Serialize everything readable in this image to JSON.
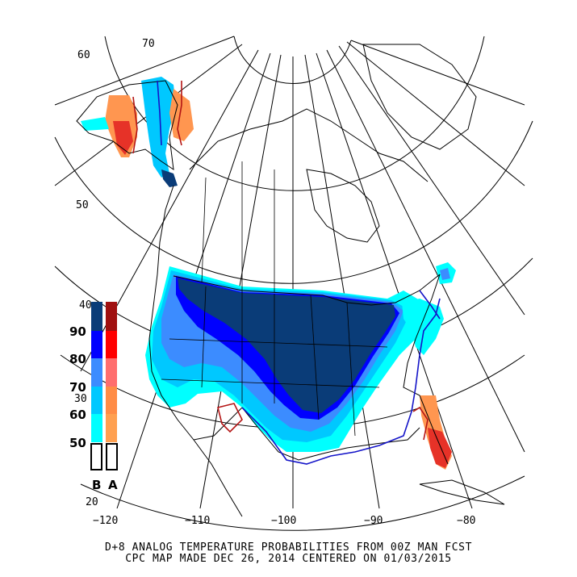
{
  "lat_labels": [
    "70",
    "60",
    "50",
    "40",
    "30",
    "20"
  ],
  "lon_labels": [
    "−120",
    "−110",
    "−100",
    "−90",
    "−80"
  ],
  "legend": {
    "levels": [
      "90",
      "80",
      "70",
      "60",
      "50"
    ],
    "below_letter": "B",
    "above_letter": "A",
    "below_colors": [
      "#0a3c78",
      "#0000ff",
      "#3c8cff",
      "#00c8ff",
      "#00ffff"
    ],
    "above_colors": [
      "#a01010",
      "#ff0000",
      "#ff6e6e",
      "#ff8c46",
      "#ffa050"
    ]
  },
  "caption": {
    "line1": "D+8 ANALOG TEMPERATURE PROBABILITIES FROM 00Z MAN FCST",
    "line2": "CPC MAP MADE DEC 26, 2014 CENTERED ON 01/03/2015"
  }
}
